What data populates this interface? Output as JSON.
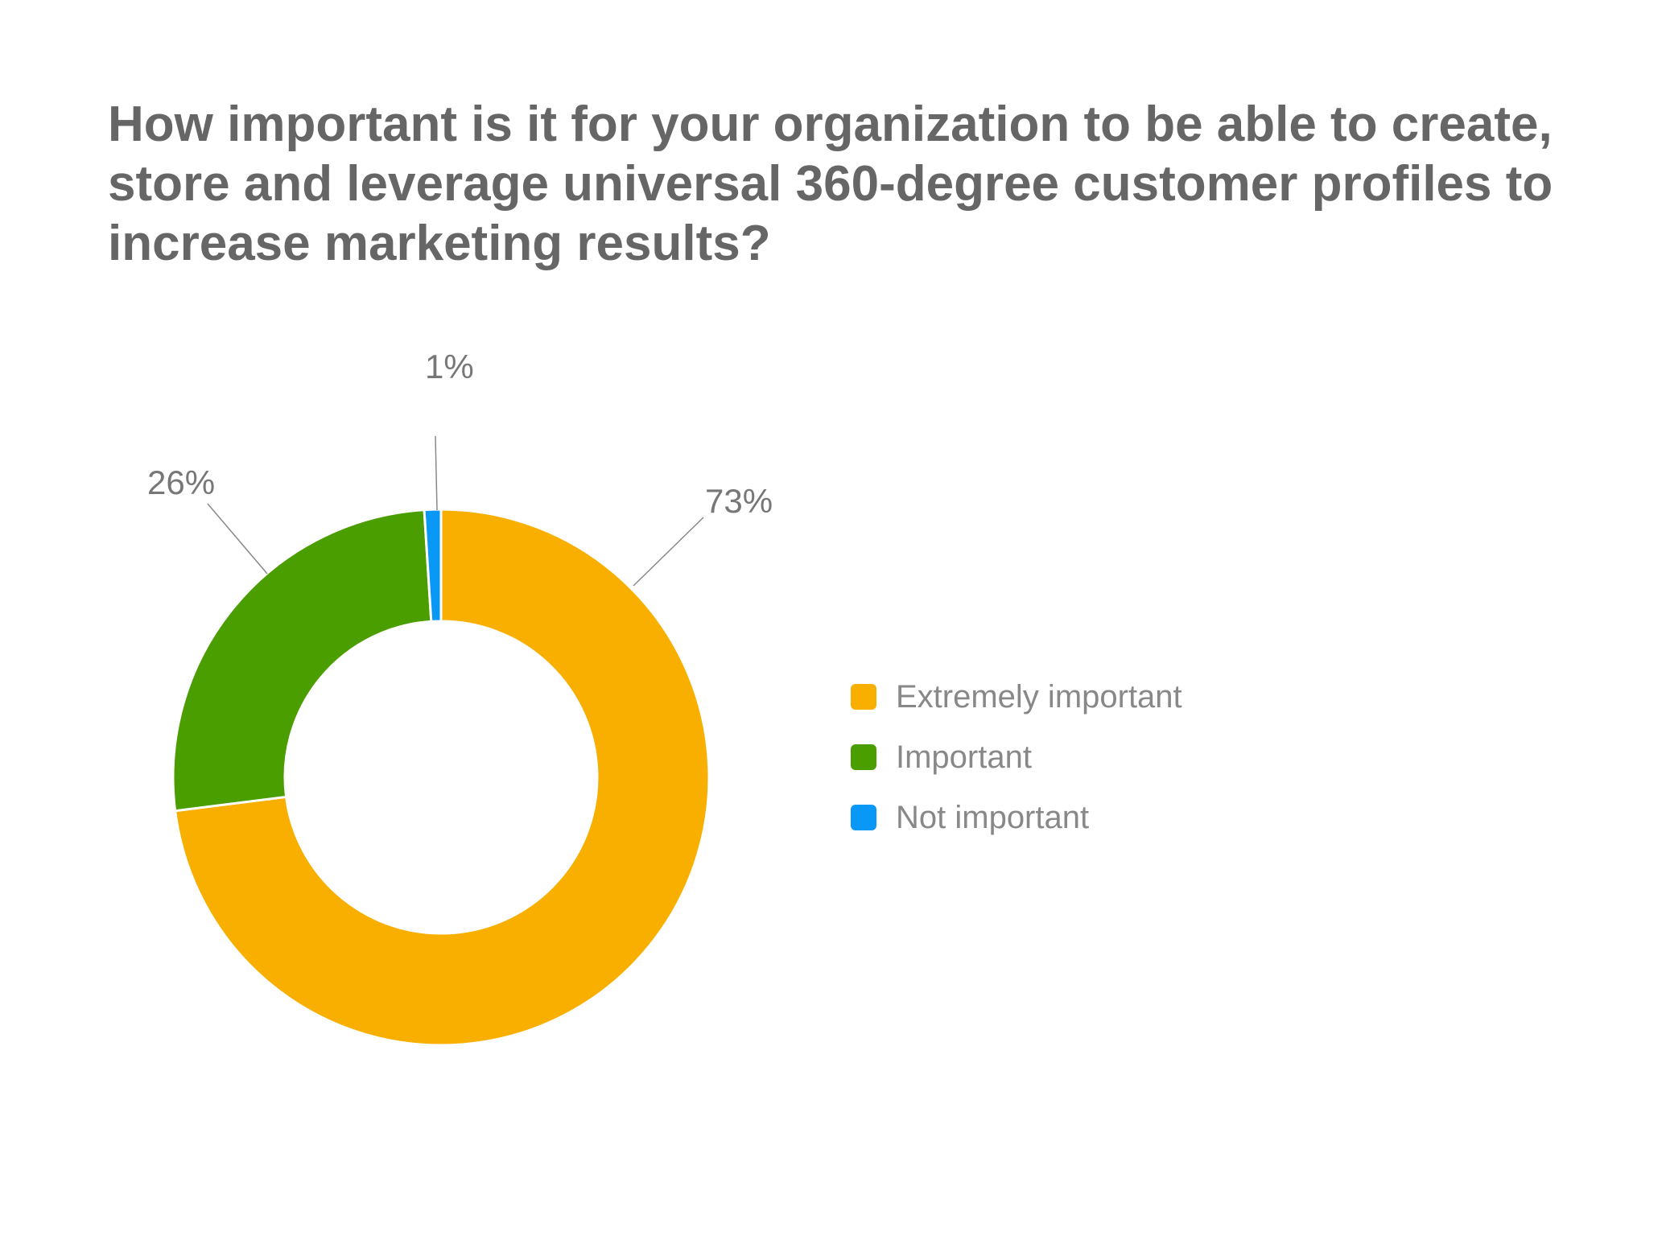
{
  "chart_data": {
    "type": "pie",
    "title": "How important is it for your organization to be able to create, store and leverage universal 360-degree customer profiles to increase marketing results?",
    "categories": [
      "Extremely important",
      "Important",
      "Not important"
    ],
    "values": [
      73,
      26,
      1
    ],
    "value_labels": [
      "73%",
      "26%",
      "1%"
    ],
    "colors": [
      "#F9AF00",
      "#4A9E00",
      "#0A98F7"
    ],
    "legend_position": "right"
  }
}
